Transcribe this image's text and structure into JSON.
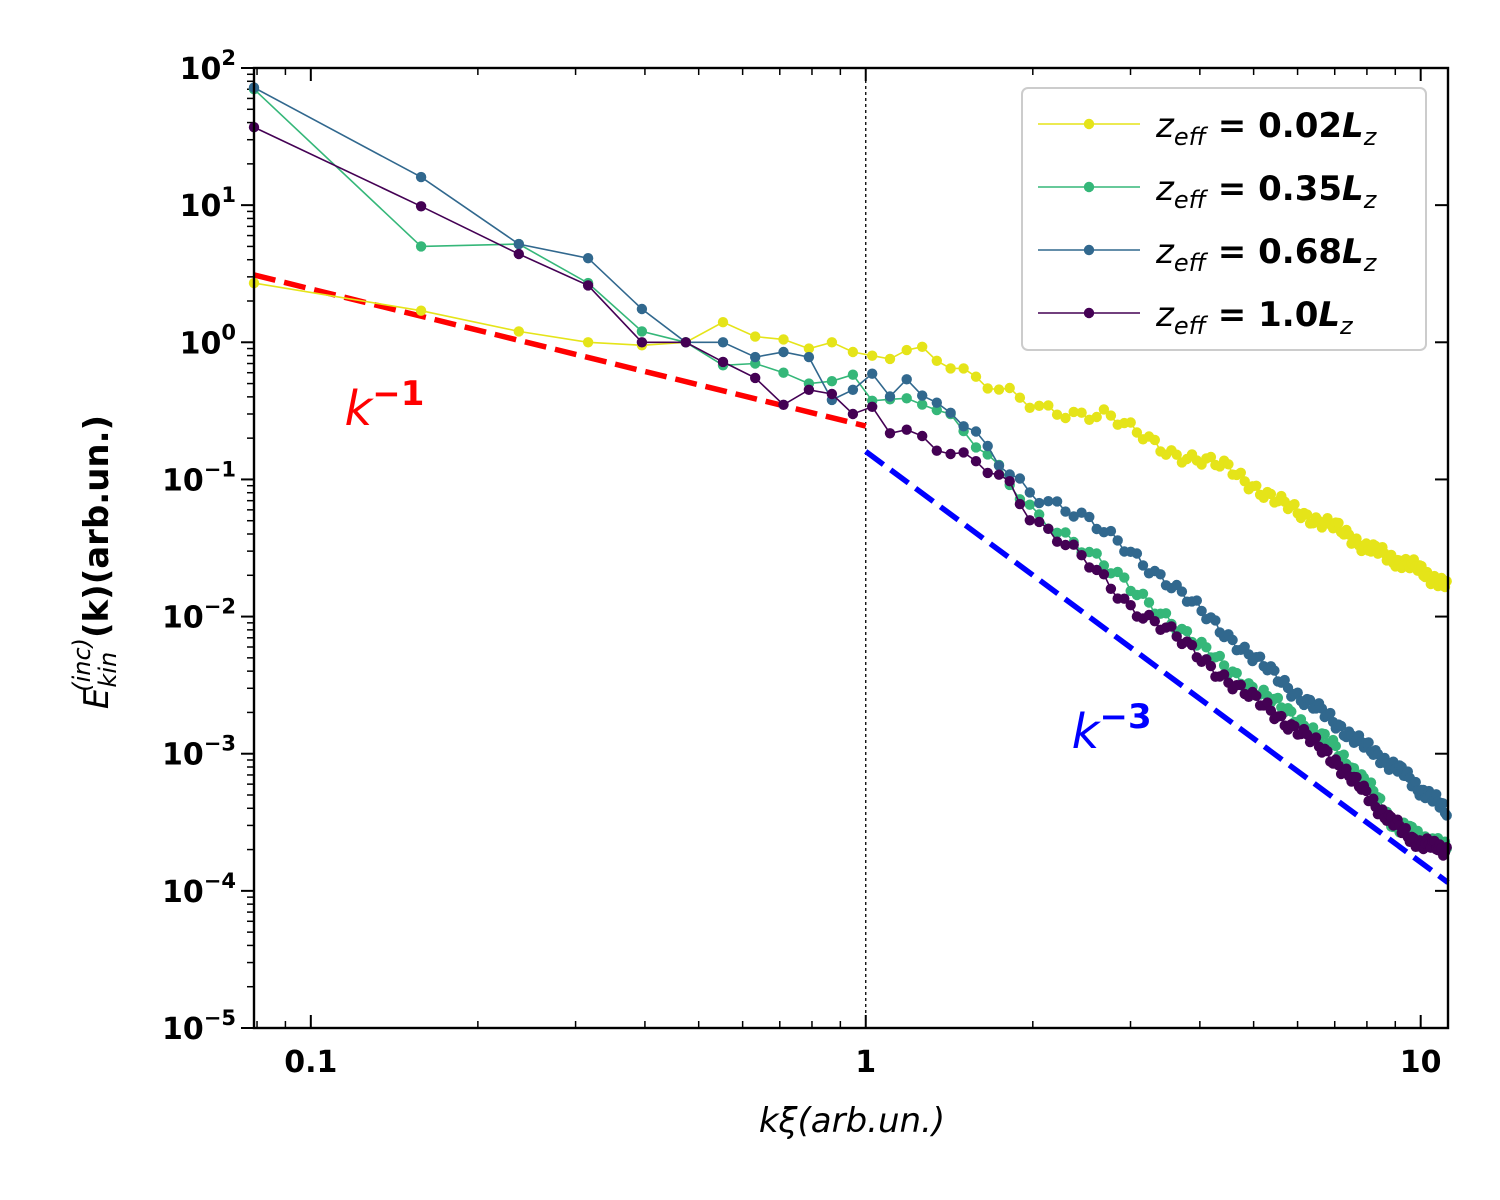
{
  "chart_data": {
    "type": "line",
    "xscale": "log",
    "yscale": "log",
    "xlim": [
      0.079,
      11.2
    ],
    "ylim": [
      1e-05,
      100
    ],
    "xlabel": "kξ(arb.un.)",
    "ylabel": "E_kin^(inc)(k)(arb.un.)",
    "ylabel_parts": {
      "base": "E",
      "sup": "(inc)",
      "sub": "kin",
      "rest": "(k)(arb.un.)"
    },
    "xticks": [
      {
        "value": 0.1,
        "label": "0.1"
      },
      {
        "value": 1,
        "label": "1"
      },
      {
        "value": 10,
        "label": "10"
      }
    ],
    "yticks": [
      {
        "value": 100,
        "exp": "2"
      },
      {
        "value": 10,
        "exp": "1"
      },
      {
        "value": 1,
        "exp": "0"
      },
      {
        "value": 0.1,
        "exp": "−1"
      },
      {
        "value": 0.01,
        "exp": "−2"
      },
      {
        "value": 0.001,
        "exp": "−3"
      },
      {
        "value": 0.0001,
        "exp": "−4"
      },
      {
        "value": 1e-05,
        "exp": "−5"
      }
    ],
    "ytick_base": "10",
    "vline": {
      "x": 1,
      "style": "dotted",
      "color": "#000000"
    },
    "series": [
      {
        "name": "z_eff = 0.02L_z",
        "label": {
          "base": "z",
          "sub": "eff",
          "eq": " = 0.02",
          "L": "L",
          "Lsub": "z"
        },
        "color": "#e5e419",
        "anchors": [
          [
            0.079,
            2.7
          ],
          [
            0.157,
            1.7
          ],
          [
            0.236,
            1.2
          ],
          [
            0.314,
            1.0
          ],
          [
            0.393,
            0.95
          ],
          [
            0.472,
            1.0
          ],
          [
            0.55,
            1.4
          ],
          [
            0.63,
            1.1
          ],
          [
            0.7,
            1.05
          ],
          [
            0.786,
            0.9
          ],
          [
            0.865,
            1.0
          ],
          [
            0.94,
            0.85
          ],
          [
            1.0,
            0.78
          ],
          [
            1.1,
            0.85
          ],
          [
            1.25,
            0.9
          ],
          [
            1.4,
            0.7
          ],
          [
            1.6,
            0.5
          ],
          [
            1.8,
            0.42
          ],
          [
            2.0,
            0.35
          ],
          [
            2.2,
            0.32
          ],
          [
            2.5,
            0.3
          ],
          [
            2.7,
            0.3
          ],
          [
            3.0,
            0.23
          ],
          [
            3.5,
            0.16
          ],
          [
            4.0,
            0.14
          ],
          [
            4.5,
            0.12
          ],
          [
            5.0,
            0.09
          ],
          [
            5.5,
            0.07
          ],
          [
            6.0,
            0.058
          ],
          [
            7.0,
            0.045
          ],
          [
            8.0,
            0.032
          ],
          [
            9.0,
            0.026
          ],
          [
            10.0,
            0.022
          ],
          [
            11.2,
            0.016
          ]
        ]
      },
      {
        "name": "z_eff = 0.35L_z",
        "label": {
          "base": "z",
          "sub": "eff",
          "eq": " = 0.35",
          "L": "L",
          "Lsub": "z"
        },
        "color": "#35b779",
        "anchors": [
          [
            0.079,
            70
          ],
          [
            0.157,
            5.0
          ],
          [
            0.236,
            5.2
          ],
          [
            0.314,
            2.7
          ],
          [
            0.393,
            1.2
          ],
          [
            0.472,
            1.0
          ],
          [
            0.55,
            0.68
          ],
          [
            0.63,
            0.7
          ],
          [
            0.7,
            0.6
          ],
          [
            0.786,
            0.5
          ],
          [
            0.865,
            0.52
          ],
          [
            0.94,
            0.58
          ],
          [
            1.0,
            0.38
          ],
          [
            1.1,
            0.36
          ],
          [
            1.25,
            0.38
          ],
          [
            1.4,
            0.28
          ],
          [
            1.6,
            0.17
          ],
          [
            1.8,
            0.1
          ],
          [
            2.0,
            0.06
          ],
          [
            2.5,
            0.03
          ],
          [
            3.0,
            0.016
          ],
          [
            3.5,
            0.01
          ],
          [
            4.0,
            0.006
          ],
          [
            5.0,
            0.003
          ],
          [
            6.0,
            0.0018
          ],
          [
            7.0,
            0.0011
          ],
          [
            8.0,
            0.0006
          ],
          [
            9.0,
            0.0003
          ],
          [
            10.0,
            0.00025
          ],
          [
            11.2,
            0.0002
          ]
        ]
      },
      {
        "name": "z_eff = 0.68L_z",
        "label": {
          "base": "z",
          "sub": "eff",
          "eq": " = 0.68",
          "L": "L",
          "Lsub": "z"
        },
        "color": "#31688e",
        "anchors": [
          [
            0.079,
            72
          ],
          [
            0.157,
            16
          ],
          [
            0.236,
            5.2
          ],
          [
            0.314,
            4.1
          ],
          [
            0.393,
            1.75
          ],
          [
            0.472,
            1.0
          ],
          [
            0.55,
            1.0
          ],
          [
            0.63,
            0.78
          ],
          [
            0.7,
            0.85
          ],
          [
            0.786,
            0.78
          ],
          [
            0.865,
            0.38
          ],
          [
            0.94,
            0.45
          ],
          [
            1.0,
            0.7
          ],
          [
            1.1,
            0.38
          ],
          [
            1.18,
            0.57
          ],
          [
            1.3,
            0.32
          ],
          [
            1.4,
            0.33
          ],
          [
            1.6,
            0.2
          ],
          [
            1.8,
            0.12
          ],
          [
            2.0,
            0.08
          ],
          [
            2.5,
            0.05
          ],
          [
            3.0,
            0.03
          ],
          [
            3.5,
            0.018
          ],
          [
            4.0,
            0.011
          ],
          [
            5.0,
            0.005
          ],
          [
            6.0,
            0.0027
          ],
          [
            7.0,
            0.0017
          ],
          [
            8.0,
            0.0011
          ],
          [
            9.0,
            0.0008
          ],
          [
            10.0,
            0.00055
          ],
          [
            11.2,
            0.00038
          ]
        ]
      },
      {
        "name": "z_eff = 1.0L_z",
        "label": {
          "base": "z",
          "sub": "eff",
          "eq": " = 1.0",
          "L": "L",
          "Lsub": "z"
        },
        "color": "#440154",
        "anchors": [
          [
            0.079,
            37
          ],
          [
            0.157,
            9.8
          ],
          [
            0.236,
            4.4
          ],
          [
            0.314,
            2.6
          ],
          [
            0.393,
            1.0
          ],
          [
            0.472,
            1.0
          ],
          [
            0.55,
            0.72
          ],
          [
            0.63,
            0.55
          ],
          [
            0.7,
            0.35
          ],
          [
            0.786,
            0.45
          ],
          [
            0.865,
            0.42
          ],
          [
            0.94,
            0.3
          ],
          [
            1.0,
            0.4
          ],
          [
            1.1,
            0.22
          ],
          [
            1.25,
            0.2
          ],
          [
            1.4,
            0.16
          ],
          [
            1.6,
            0.14
          ],
          [
            1.8,
            0.1
          ],
          [
            2.0,
            0.05
          ],
          [
            2.5,
            0.025
          ],
          [
            3.0,
            0.012
          ],
          [
            3.5,
            0.008
          ],
          [
            4.0,
            0.005
          ],
          [
            5.0,
            0.0025
          ],
          [
            6.0,
            0.0015
          ],
          [
            7.0,
            0.0009
          ],
          [
            8.0,
            0.0005
          ],
          [
            9.0,
            0.0003
          ],
          [
            10.0,
            0.00022
          ],
          [
            11.2,
            0.0002
          ]
        ]
      }
    ],
    "fit_lines": [
      {
        "name": "k^-1",
        "label": {
          "base": "k",
          "exp": "−1"
        },
        "color": "#ff0000",
        "x": [
          0.079,
          1.0
        ],
        "y": [
          3.1,
          0.245
        ],
        "label_at": {
          "x": 0.115,
          "y": 0.25
        }
      },
      {
        "name": "k^-3",
        "label": {
          "base": "k",
          "exp": "−3"
        },
        "color": "#0000ff",
        "x": [
          1.0,
          11.2
        ],
        "y": [
          0.16,
          0.000115
        ],
        "label_at": {
          "x": 2.35,
          "y": 0.0011
        }
      }
    ],
    "legend": "top-right"
  }
}
